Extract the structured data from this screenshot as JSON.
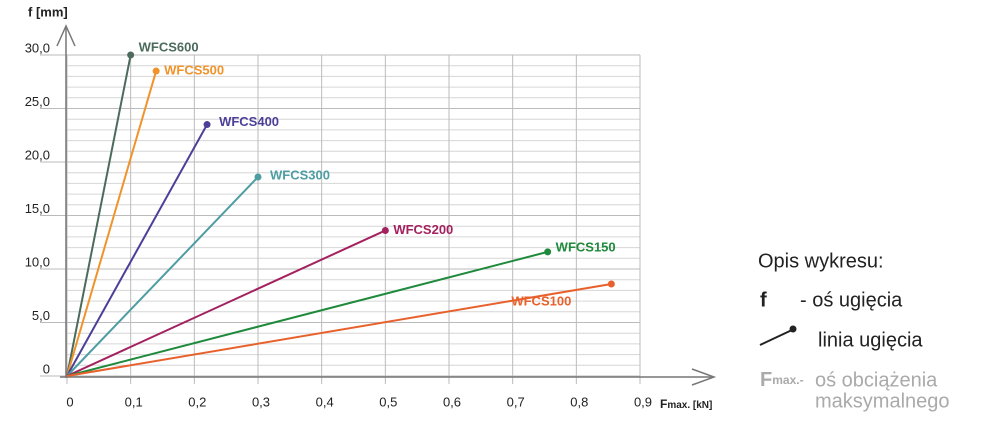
{
  "chart_data": {
    "type": "line",
    "ylabel": "f [mm]",
    "xlabel": {
      "main": "F",
      "sub": "max. [kN]"
    },
    "xlim": [
      0,
      0.9
    ],
    "ylim": [
      0,
      30
    ],
    "xticks": [
      0,
      {
        "value": 0.1,
        "label": "0,1"
      },
      {
        "value": 0.2,
        "label": "0,2"
      },
      {
        "value": 0.3,
        "label": "0,3"
      },
      {
        "value": 0.4,
        "label": "0,4"
      },
      {
        "value": 0.5,
        "label": "0,5"
      },
      {
        "value": 0.6,
        "label": "0,6"
      },
      {
        "value": 0.7,
        "label": "0,7"
      },
      {
        "value": 0.8,
        "label": "0,8"
      },
      {
        "value": 0.9,
        "label": "0,9"
      }
    ],
    "yticks": [
      0,
      {
        "value": 5,
        "label": "5,0"
      },
      {
        "value": 10,
        "label": "10,0"
      },
      {
        "value": 15,
        "label": "15,0"
      },
      {
        "value": 20,
        "label": "20,0"
      },
      {
        "value": 25,
        "label": "25,0"
      },
      {
        "value": 30,
        "label": "30,0"
      }
    ],
    "grid": true,
    "series": [
      {
        "name": "WFCS600",
        "color": "#4d6b5c",
        "x": [
          0,
          0.1
        ],
        "values": [
          0,
          30
        ]
      },
      {
        "name": "WFCS500",
        "color": "#f0932b",
        "x": [
          0,
          0.14
        ],
        "values": [
          0,
          28.5
        ]
      },
      {
        "name": "WFCS400",
        "color": "#4b3f98",
        "x": [
          0,
          0.22
        ],
        "values": [
          0,
          23.5
        ]
      },
      {
        "name": "WFCS300",
        "color": "#4d9da3",
        "x": [
          0,
          0.3
        ],
        "values": [
          0,
          18.6
        ]
      },
      {
        "name": "WFCS200",
        "color": "#a3215f",
        "x": [
          0,
          0.5
        ],
        "values": [
          0,
          13.6
        ]
      },
      {
        "name": "WFCS150",
        "color": "#1f8a3c",
        "x": [
          0,
          0.755
        ],
        "values": [
          0,
          11.6
        ]
      },
      {
        "name": "WFCS100",
        "color": "#e8612c",
        "x": [
          0,
          0.855
        ],
        "values": [
          0,
          8.6
        ]
      }
    ]
  },
  "description": {
    "title": "Opis wykresu:",
    "f_symbol": "f",
    "f_text": "- oś ugięcia",
    "line_text": "linia ugięcia",
    "F_symbol": "F",
    "F_sub": "max.-",
    "F_text1": "oś obciążenia",
    "F_text2": "maksymalnego"
  }
}
